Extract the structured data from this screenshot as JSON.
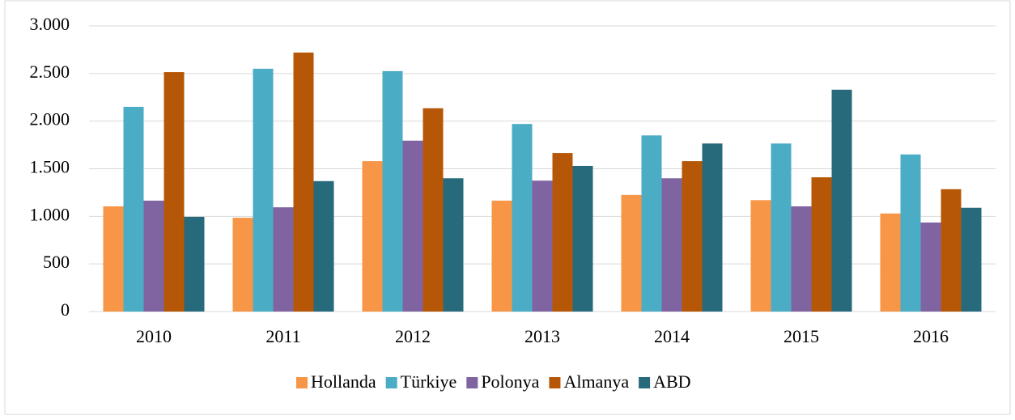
{
  "chart_data": {
    "type": "bar",
    "categories": [
      "2010",
      "2011",
      "2012",
      "2013",
      "2014",
      "2015",
      "2016"
    ],
    "series": [
      {
        "name": "Hollanda",
        "color": "#f79646",
        "values": [
          1105,
          985,
          1580,
          1165,
          1225,
          1170,
          1030
        ]
      },
      {
        "name": "Türkiye",
        "color": "#4bacc6",
        "values": [
          2150,
          2550,
          2525,
          1970,
          1850,
          1765,
          1650
        ]
      },
      {
        "name": "Polonya",
        "color": "#8064a2",
        "values": [
          1165,
          1095,
          1795,
          1375,
          1400,
          1105,
          935
        ]
      },
      {
        "name": "Almanya",
        "color": "#b65708",
        "values": [
          2515,
          2720,
          2135,
          1665,
          1580,
          1410,
          1285
        ]
      },
      {
        "name": "ABD",
        "color": "#276a7c",
        "values": [
          995,
          1370,
          1400,
          1530,
          1765,
          2330,
          1090
        ]
      }
    ],
    "ylim": [
      0,
      3000
    ],
    "yticks": [
      0,
      500,
      {
        "value": 1000,
        "label": "1.000"
      },
      {
        "value": 1500,
        "label": "1.500"
      },
      {
        "value": 2000,
        "label": "2.000"
      },
      {
        "value": 2500,
        "label": "2.500"
      },
      {
        "value": 3000,
        "label": "3.000"
      }
    ],
    "grid": true,
    "legend": "bottom"
  }
}
